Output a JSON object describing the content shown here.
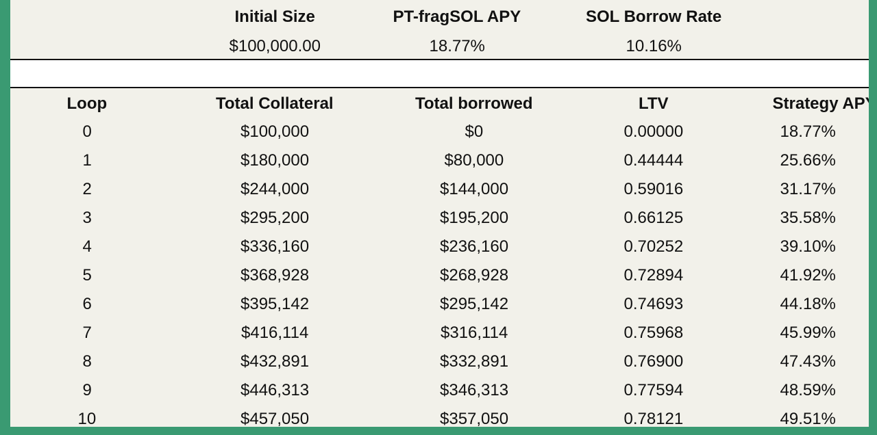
{
  "summary": {
    "headers": [
      "Initial Size",
      "PT-fragSOL APY",
      "SOL Borrow Rate"
    ],
    "values": [
      "$100,000.00",
      "18.77%",
      "10.16%"
    ]
  },
  "table": {
    "columns": [
      "Loop",
      "Total Collateral",
      "Total borrowed",
      "LTV",
      "Strategy APY"
    ],
    "rows": [
      [
        "0",
        "$100,000",
        "$0",
        "0.00000",
        "18.77%"
      ],
      [
        "1",
        "$180,000",
        "$80,000",
        "0.44444",
        "25.66%"
      ],
      [
        "2",
        "$244,000",
        "$144,000",
        "0.59016",
        "31.17%"
      ],
      [
        "3",
        "$295,200",
        "$195,200",
        "0.66125",
        "35.58%"
      ],
      [
        "4",
        "$336,160",
        "$236,160",
        "0.70252",
        "39.10%"
      ],
      [
        "5",
        "$368,928",
        "$268,928",
        "0.72894",
        "41.92%"
      ],
      [
        "6",
        "$395,142",
        "$295,142",
        "0.74693",
        "44.18%"
      ],
      [
        "7",
        "$416,114",
        "$316,114",
        "0.75968",
        "45.99%"
      ],
      [
        "8",
        "$432,891",
        "$332,891",
        "0.76900",
        "47.43%"
      ],
      [
        "9",
        "$446,313",
        "$346,313",
        "0.77594",
        "48.59%"
      ],
      [
        "10",
        "$457,050",
        "$357,050",
        "0.78121",
        "49.51%"
      ]
    ]
  },
  "colors": {
    "frame": "#3a9a72",
    "sheet": "#f2f1ea",
    "band": "#ffffff",
    "text": "#111111"
  }
}
